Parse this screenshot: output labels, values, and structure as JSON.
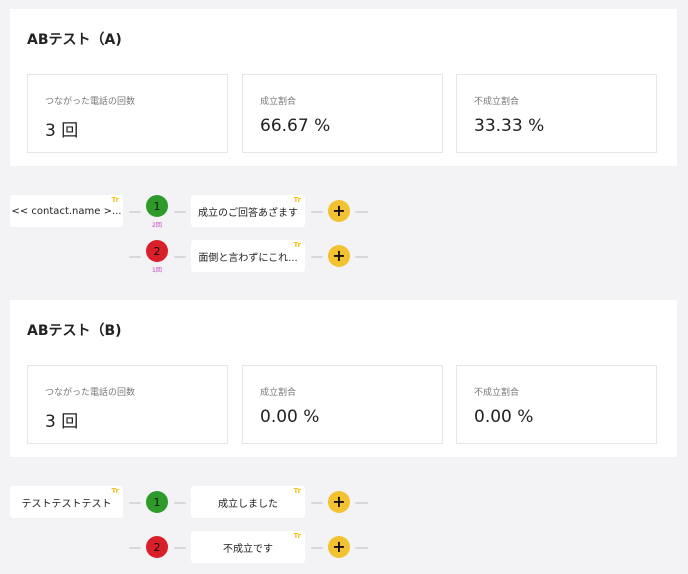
{
  "section_a": {
    "title": "ABテスト（A)",
    "stats": [
      {
        "label": "つながった電話の回数",
        "value": "3 回"
      },
      {
        "label": "成立割合",
        "value": "66.67 %"
      },
      {
        "label": "不成立割合",
        "value": "33.33 %"
      }
    ]
  },
  "flow_a": {
    "start_label": "<< contact.name >...",
    "branches": [
      {
        "number": "1",
        "count": "2回",
        "label": "成立のご回答あざます",
        "status_color": "#2e9a2a"
      },
      {
        "number": "2",
        "count": "1回",
        "label": "面倒と言わずにこれ...",
        "status_color": "#d81f2a"
      }
    ],
    "add_symbol": "+",
    "text_badge": "Tr"
  },
  "section_b": {
    "title": "ABテスト（B)",
    "stats": [
      {
        "label": "つながった電話の回数",
        "value": "3 回"
      },
      {
        "label": "成立割合",
        "value": "0.00 %"
      },
      {
        "label": "不成立割合",
        "value": "0.00 %"
      }
    ]
  },
  "flow_b": {
    "start_label": "テストテストテスト",
    "branches": [
      {
        "number": "1",
        "label": "成立しました",
        "status_color": "#2e9a2a"
      },
      {
        "number": "2",
        "label": "不成立です",
        "status_color": "#d81f2a"
      }
    ],
    "add_symbol": "+",
    "text_badge": "Tr"
  }
}
